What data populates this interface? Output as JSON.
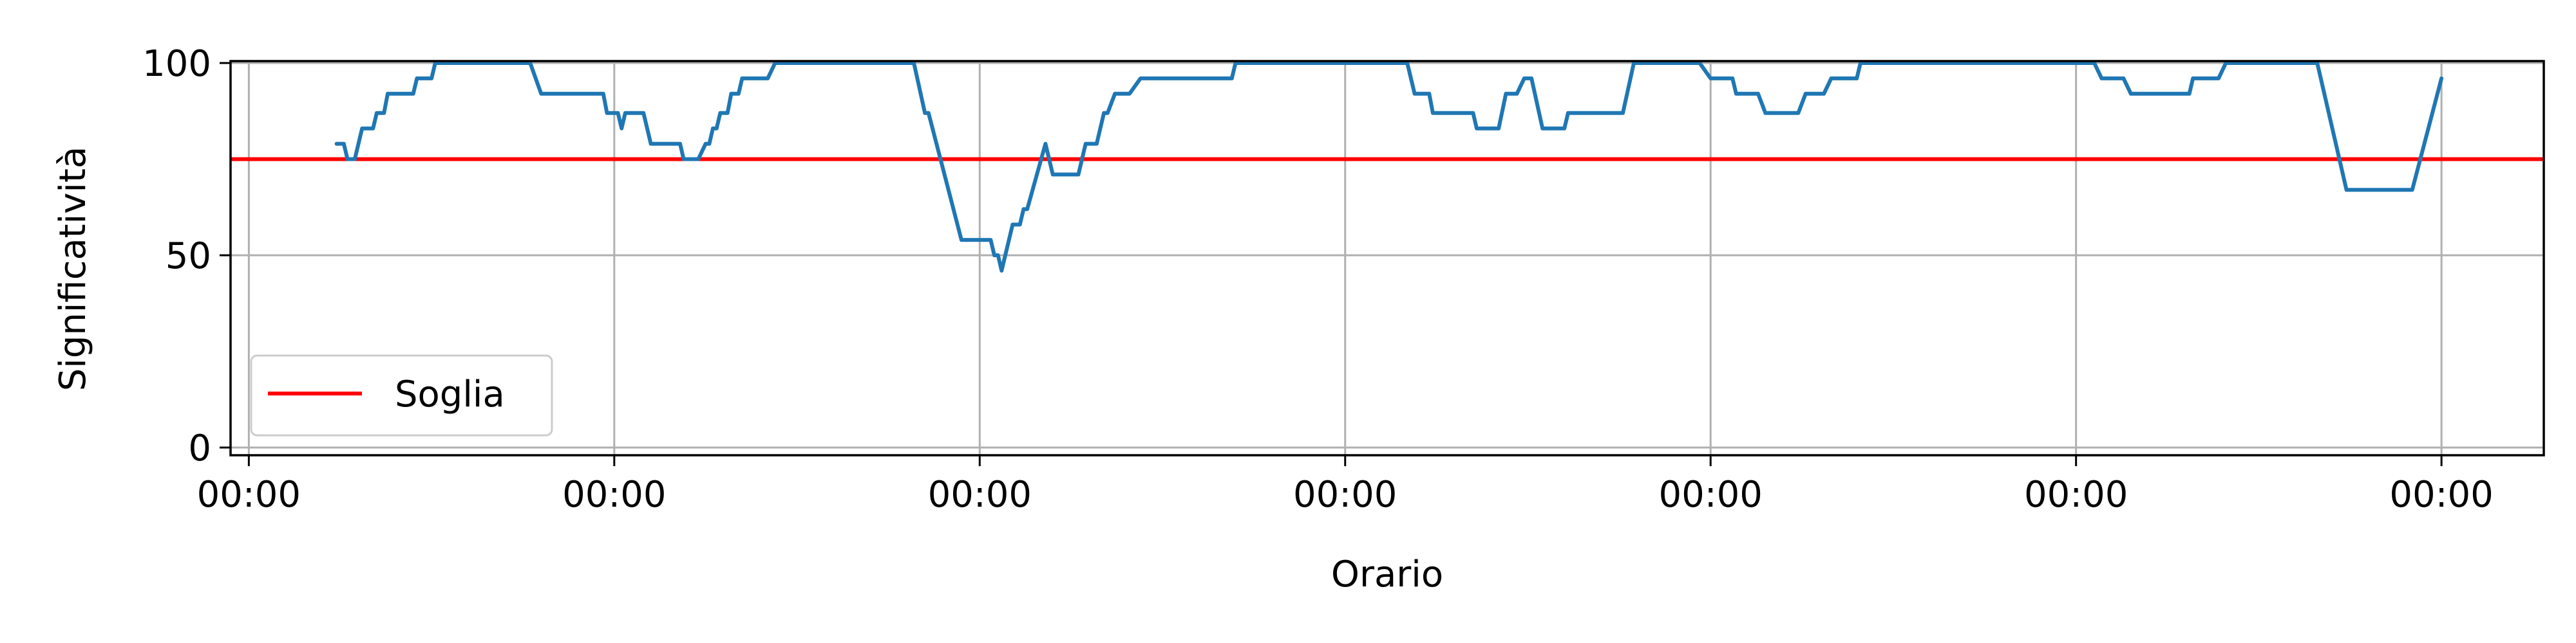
{
  "chart_data": {
    "type": "line",
    "title": "",
    "xlabel": "Orario",
    "ylabel": "Significatività",
    "x_ticks": [
      0,
      1,
      2,
      3,
      4,
      5,
      6
    ],
    "x_tick_labels": [
      "00:00",
      "00:00",
      "00:00",
      "00:00",
      "00:00",
      "00:00",
      "00:00"
    ],
    "y_ticks": [
      0,
      50,
      100
    ],
    "y_tick_labels": [
      "0",
      "50",
      "100"
    ],
    "xlim": [
      -0.05,
      6.28
    ],
    "ylim": [
      -2,
      100.5
    ],
    "grid": true,
    "legend": {
      "placement": "lower-left",
      "entries": [
        {
          "label": "Soglia",
          "color": "#ff0000"
        }
      ]
    },
    "threshold": {
      "name": "Soglia",
      "value": 75,
      "color": "#ff0000"
    },
    "series": [
      {
        "color": "#1f77b4",
        "points": [
          [
            0.24,
            79
          ],
          [
            0.26,
            79
          ],
          [
            0.27,
            75
          ],
          [
            0.29,
            75
          ],
          [
            0.31,
            83
          ],
          [
            0.34,
            83
          ],
          [
            0.35,
            87
          ],
          [
            0.37,
            87
          ],
          [
            0.38,
            92
          ],
          [
            0.45,
            92
          ],
          [
            0.46,
            96
          ],
          [
            0.5,
            96
          ],
          [
            0.51,
            100
          ],
          [
            0.77,
            100
          ],
          [
            0.8,
            92
          ],
          [
            0.97,
            92
          ],
          [
            0.98,
            87
          ],
          [
            1.01,
            87
          ],
          [
            1.02,
            83
          ],
          [
            1.03,
            87
          ],
          [
            1.08,
            87
          ],
          [
            1.1,
            79
          ],
          [
            1.18,
            79
          ],
          [
            1.19,
            75
          ],
          [
            1.23,
            75
          ],
          [
            1.25,
            79
          ],
          [
            1.26,
            79
          ],
          [
            1.27,
            83
          ],
          [
            1.28,
            83
          ],
          [
            1.29,
            87
          ],
          [
            1.31,
            87
          ],
          [
            1.32,
            92
          ],
          [
            1.34,
            92
          ],
          [
            1.35,
            96
          ],
          [
            1.42,
            96
          ],
          [
            1.44,
            100
          ],
          [
            1.82,
            100
          ],
          [
            1.85,
            87
          ],
          [
            1.86,
            87
          ],
          [
            1.95,
            54
          ],
          [
            2.03,
            54
          ],
          [
            2.04,
            50
          ],
          [
            2.05,
            50
          ],
          [
            2.06,
            46
          ],
          [
            2.09,
            58
          ],
          [
            2.11,
            58
          ],
          [
            2.12,
            62
          ],
          [
            2.13,
            62
          ],
          [
            2.18,
            79
          ],
          [
            2.2,
            71
          ],
          [
            2.27,
            71
          ],
          [
            2.29,
            79
          ],
          [
            2.32,
            79
          ],
          [
            2.34,
            87
          ],
          [
            2.35,
            87
          ],
          [
            2.37,
            92
          ],
          [
            2.41,
            92
          ],
          [
            2.44,
            96
          ],
          [
            2.69,
            96
          ],
          [
            2.7,
            100
          ],
          [
            3.17,
            100
          ],
          [
            3.19,
            92
          ],
          [
            3.23,
            92
          ],
          [
            3.24,
            87
          ],
          [
            3.35,
            87
          ],
          [
            3.36,
            83
          ],
          [
            3.42,
            83
          ],
          [
            3.44,
            92
          ],
          [
            3.47,
            92
          ],
          [
            3.49,
            96
          ],
          [
            3.51,
            96
          ],
          [
            3.54,
            83
          ],
          [
            3.6,
            83
          ],
          [
            3.61,
            87
          ],
          [
            3.76,
            87
          ],
          [
            3.79,
            100
          ],
          [
            3.97,
            100
          ],
          [
            4.0,
            96
          ],
          [
            4.06,
            96
          ],
          [
            4.07,
            92
          ],
          [
            4.13,
            92
          ],
          [
            4.15,
            87
          ],
          [
            4.24,
            87
          ],
          [
            4.26,
            92
          ],
          [
            4.31,
            92
          ],
          [
            4.33,
            96
          ],
          [
            4.4,
            96
          ],
          [
            4.41,
            100
          ],
          [
            5.05,
            100
          ],
          [
            5.07,
            96
          ],
          [
            5.13,
            96
          ],
          [
            5.15,
            92
          ],
          [
            5.31,
            92
          ],
          [
            5.32,
            96
          ],
          [
            5.39,
            96
          ],
          [
            5.41,
            100
          ],
          [
            5.66,
            100
          ],
          [
            5.74,
            67
          ],
          [
            5.92,
            67
          ],
          [
            6.0,
            96
          ]
        ]
      }
    ]
  }
}
